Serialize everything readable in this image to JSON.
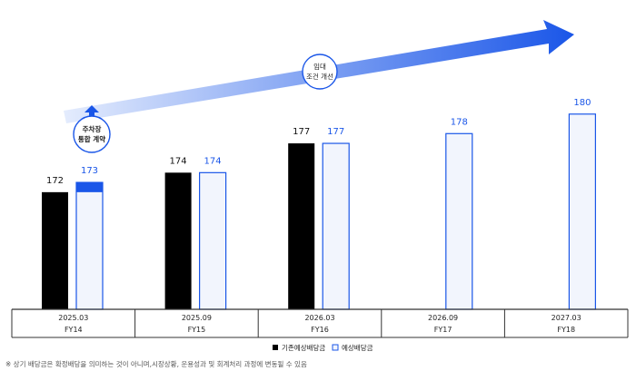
{
  "colors": {
    "existing": "#000000",
    "expected_border": "#1a56e8",
    "expected_fill": "#f2f5fd",
    "expected_label": "#1a56e8",
    "arrow_start": "#e4ecfd",
    "arrow_end": "#1a56e8",
    "table_line": "#333333"
  },
  "chart_data": {
    "type": "bar",
    "categories": [
      {
        "date": "2025.03",
        "fy": "FY14"
      },
      {
        "date": "2025.09",
        "fy": "FY15"
      },
      {
        "date": "2026.03",
        "fy": "FY16"
      },
      {
        "date": "2026.09",
        "fy": "FY17"
      },
      {
        "date": "2027.03",
        "fy": "FY18"
      }
    ],
    "series": [
      {
        "name": "기존예상배당금",
        "values": [
          172,
          174,
          177,
          null,
          null
        ]
      },
      {
        "name": "예상배당금",
        "values": [
          173,
          174,
          177,
          178,
          180
        ]
      }
    ],
    "annotations": [
      {
        "text_lines": [
          "주차장",
          "통합 계약"
        ]
      },
      {
        "text_lines": [
          "임대",
          "조건 개선"
        ]
      }
    ],
    "ylim": [
      160,
      181
    ]
  },
  "footnote": "※ 상기 배당금은 확정배당을 의미하는 것이 아니며,시장상황, 운용성과 및 회계처리 과정에 변동될 수 있음"
}
